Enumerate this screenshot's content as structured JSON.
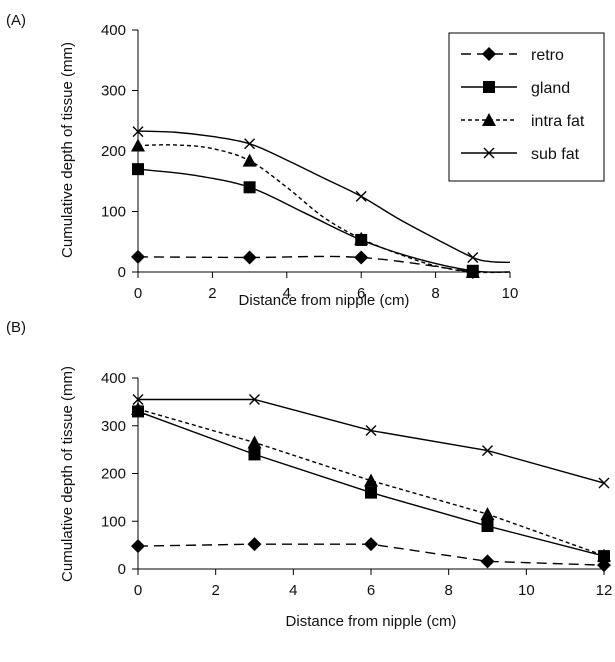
{
  "chart_data": [
    {
      "panel_label": "(A)",
      "type": "line",
      "xlabel": "Distance from nipple (cm)",
      "ylabel": "Cumulative depth of tissue (mm)",
      "xlim": [
        0,
        10
      ],
      "ylim": [
        0,
        400
      ],
      "xticks": [
        "0",
        "2",
        "4",
        "6",
        "8",
        "10"
      ],
      "yticks": [
        "0",
        "100",
        "200",
        "300",
        "400"
      ],
      "legend_position": "top-right",
      "series": [
        {
          "name": "retro",
          "marker": "diamond",
          "line": "dashed",
          "points": [
            [
              0,
              25
            ],
            [
              3,
              24
            ],
            [
              6,
              24
            ],
            [
              9,
              0
            ]
          ],
          "curve": [
            [
              0,
              25
            ],
            [
              3,
              24
            ],
            [
              6,
              24
            ],
            [
              9,
              0
            ]
          ]
        },
        {
          "name": "gland",
          "marker": "square",
          "line": "solid",
          "points": [
            [
              0,
              170
            ],
            [
              3,
              140
            ],
            [
              6,
              53
            ],
            [
              9,
              2
            ]
          ],
          "curve": [
            [
              0,
              170
            ],
            [
              1.5,
              160
            ],
            [
              3,
              140
            ],
            [
              4.5,
              97
            ],
            [
              6,
              53
            ],
            [
              7.5,
              22
            ],
            [
              9,
              2
            ],
            [
              10,
              0
            ]
          ]
        },
        {
          "name": "intra fat",
          "marker": "triangle",
          "line": "dotted",
          "points": [
            [
              0,
              209
            ],
            [
              3,
              184
            ],
            [
              6,
              55
            ],
            [
              9,
              0
            ]
          ],
          "curve": [
            [
              0,
              209
            ],
            [
              1,
              210
            ],
            [
              2,
              204
            ],
            [
              3,
              184
            ],
            [
              4,
              140
            ],
            [
              5,
              90
            ],
            [
              6,
              55
            ],
            [
              7,
              30
            ],
            [
              8,
              10
            ],
            [
              9,
              0
            ],
            [
              10,
              0
            ]
          ]
        },
        {
          "name": "sub fat",
          "marker": "x",
          "line": "solid",
          "points": [
            [
              0,
              232
            ],
            [
              3,
              212
            ],
            [
              6,
              125
            ],
            [
              9,
              24
            ]
          ],
          "curve": [
            [
              0,
              233
            ],
            [
              1,
              231
            ],
            [
              2,
              224
            ],
            [
              3,
              212
            ],
            [
              4,
              185
            ],
            [
              5,
              155
            ],
            [
              6,
              125
            ],
            [
              7,
              88
            ],
            [
              8,
              55
            ],
            [
              9,
              24
            ],
            [
              9.5,
              17
            ],
            [
              10,
              16
            ]
          ]
        }
      ]
    },
    {
      "panel_label": "(B)",
      "type": "line",
      "xlabel": "Distance from nipple (cm)",
      "ylabel": "Cumulative depth of tissue (mm)",
      "xlim": [
        0,
        12
      ],
      "ylim": [
        0,
        400
      ],
      "xticks": [
        "0",
        "2",
        "4",
        "6",
        "8",
        "10",
        "12"
      ],
      "yticks": [
        "0",
        "100",
        "200",
        "300",
        "400"
      ],
      "series": [
        {
          "name": "retro",
          "marker": "diamond",
          "line": "dashed",
          "points": [
            [
              0,
              48
            ],
            [
              3,
              52
            ],
            [
              6,
              52
            ],
            [
              9,
              16
            ],
            [
              12,
              8
            ]
          ]
        },
        {
          "name": "gland",
          "marker": "square",
          "line": "solid",
          "points": [
            [
              0,
              330
            ],
            [
              3,
              240
            ],
            [
              6,
              160
            ],
            [
              9,
              90
            ],
            [
              12,
              27
            ]
          ]
        },
        {
          "name": "intra fat",
          "marker": "triangle",
          "line": "dotted",
          "points": [
            [
              0,
              335
            ],
            [
              3,
              265
            ],
            [
              6,
              185
            ],
            [
              9,
              115
            ],
            [
              12,
              28
            ]
          ]
        },
        {
          "name": "sub fat",
          "marker": "x",
          "line": "solid",
          "points": [
            [
              0,
              355
            ],
            [
              3,
              355
            ],
            [
              6,
              290
            ],
            [
              9,
              248
            ],
            [
              12,
              180
            ]
          ]
        }
      ]
    }
  ]
}
